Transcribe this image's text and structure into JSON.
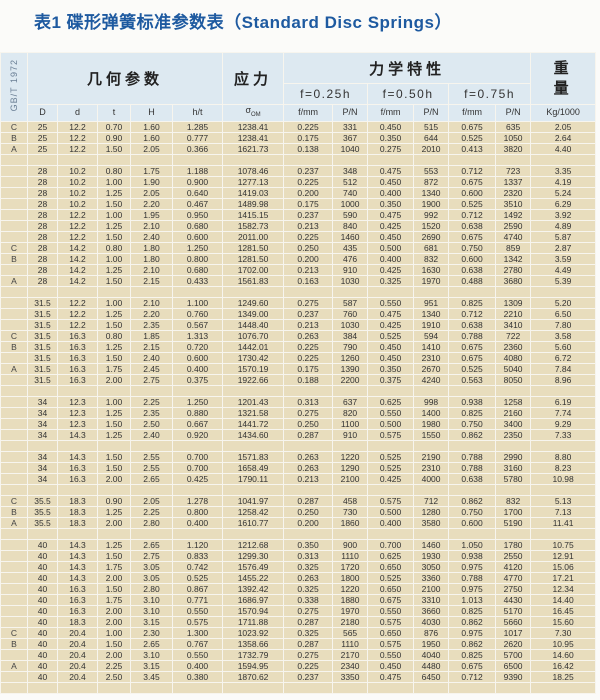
{
  "title": "表1 碟形弹簧标准参数表（Standard Disc Springs）",
  "header": {
    "standard": "GB/T 1972",
    "geometry": "几何参数",
    "stress": "应力",
    "mechanical": "力学特性",
    "weight_top": "重",
    "weight_bottom": "量",
    "f025": "f=0.25h",
    "f050": "f=0.50h",
    "f075": "f=0.75h",
    "columns": {
      "D": "D",
      "d": "d",
      "t": "t",
      "H": "H",
      "ht": "h/t",
      "sigma": "σ",
      "sigma_sub": "OM",
      "f1": "f/mm",
      "p1": "P/N",
      "f2": "f/mm",
      "p2": "P/N",
      "f3": "f/mm",
      "p3": "P/N",
      "kg": "Kg/1000"
    }
  },
  "colors": {
    "title": "#1e5aa0",
    "header_bg": "#dde9f1",
    "row_bg": "#e8ddbd"
  },
  "rows": [
    [
      "C",
      "25",
      "12.2",
      "0.70",
      "1.60",
      "1.285",
      "1238.41",
      "0.225",
      "331",
      "0.450",
      "515",
      "0.675",
      "635",
      "2.05"
    ],
    [
      "B",
      "25",
      "12.2",
      "0.90",
      "1.60",
      "0.777",
      "1238.41",
      "0.175",
      "367",
      "0.350",
      "644",
      "0.525",
      "1050",
      "2.64"
    ],
    [
      "A",
      "25",
      "12.2",
      "1.50",
      "2.05",
      "0.366",
      "1621.73",
      "0.138",
      "1040",
      "0.275",
      "2010",
      "0.413",
      "3820",
      "4.40"
    ],
    null,
    [
      "",
      "28",
      "10.2",
      "0.80",
      "1.75",
      "1.188",
      "1078.46",
      "0.237",
      "348",
      "0.475",
      "553",
      "0.712",
      "723",
      "3.35"
    ],
    [
      "",
      "28",
      "10.2",
      "1.00",
      "1.90",
      "0.900",
      "1277.13",
      "0.225",
      "512",
      "0.450",
      "872",
      "0.675",
      "1337",
      "4.19"
    ],
    [
      "",
      "28",
      "10.2",
      "1.25",
      "2.05",
      "0.640",
      "1419.03",
      "0.200",
      "740",
      "0.400",
      "1340",
      "0.600",
      "2320",
      "5.24"
    ],
    [
      "",
      "28",
      "10.2",
      "1.50",
      "2.20",
      "0.467",
      "1489.98",
      "0.175",
      "1000",
      "0.350",
      "1900",
      "0.525",
      "3510",
      "6.29"
    ],
    [
      "",
      "28",
      "12.2",
      "1.00",
      "1.95",
      "0.950",
      "1415.15",
      "0.237",
      "590",
      "0.475",
      "992",
      "0.712",
      "1492",
      "3.92"
    ],
    [
      "",
      "28",
      "12.2",
      "1.25",
      "2.10",
      "0.680",
      "1582.73",
      "0.213",
      "840",
      "0.425",
      "1520",
      "0.638",
      "2590",
      "4.89"
    ],
    [
      "",
      "28",
      "12.2",
      "1.50",
      "2.40",
      "0.600",
      "2011.00",
      "0.225",
      "1460",
      "0.450",
      "2690",
      "0.675",
      "4740",
      "5.87"
    ],
    [
      "C",
      "28",
      "14.2",
      "0.80",
      "1.80",
      "1.250",
      "1281.50",
      "0.250",
      "435",
      "0.500",
      "681",
      "0.750",
      "859",
      "2.87"
    ],
    [
      "B",
      "28",
      "14.2",
      "1.00",
      "1.80",
      "0.800",
      "1281.50",
      "0.200",
      "476",
      "0.400",
      "832",
      "0.600",
      "1342",
      "3.59"
    ],
    [
      "",
      "28",
      "14.2",
      "1.25",
      "2.10",
      "0.680",
      "1702.00",
      "0.213",
      "910",
      "0.425",
      "1630",
      "0.638",
      "2780",
      "4.49"
    ],
    [
      "A",
      "28",
      "14.2",
      "1.50",
      "2.15",
      "0.433",
      "1561.83",
      "0.163",
      "1030",
      "0.325",
      "1970",
      "0.488",
      "3680",
      "5.39"
    ],
    null,
    [
      "",
      "31.5",
      "12.2",
      "1.00",
      "2.10",
      "1.100",
      "1249.60",
      "0.275",
      "587",
      "0.550",
      "951",
      "0.825",
      "1309",
      "5.20"
    ],
    [
      "",
      "31.5",
      "12.2",
      "1.25",
      "2.20",
      "0.760",
      "1349.00",
      "0.237",
      "760",
      "0.475",
      "1340",
      "0.712",
      "2210",
      "6.50"
    ],
    [
      "",
      "31.5",
      "12.2",
      "1.50",
      "2.35",
      "0.567",
      "1448.40",
      "0.213",
      "1030",
      "0.425",
      "1910",
      "0.638",
      "3410",
      "7.80"
    ],
    [
      "C",
      "31.5",
      "16.3",
      "0.80",
      "1.85",
      "1.313",
      "1076.70",
      "0.263",
      "384",
      "0.525",
      "594",
      "0.788",
      "722",
      "3.58"
    ],
    [
      "B",
      "31.5",
      "16.3",
      "1.25",
      "2.15",
      "0.720",
      "1442.01",
      "0.225",
      "790",
      "0.450",
      "1410",
      "0.675",
      "2360",
      "5.60"
    ],
    [
      "",
      "31.5",
      "16.3",
      "1.50",
      "2.40",
      "0.600",
      "1730.42",
      "0.225",
      "1260",
      "0.450",
      "2310",
      "0.675",
      "4080",
      "6.72"
    ],
    [
      "A",
      "31.5",
      "16.3",
      "1.75",
      "2.45",
      "0.400",
      "1570.19",
      "0.175",
      "1390",
      "0.350",
      "2670",
      "0.525",
      "5040",
      "7.84"
    ],
    [
      "",
      "31.5",
      "16.3",
      "2.00",
      "2.75",
      "0.375",
      "1922.66",
      "0.188",
      "2200",
      "0.375",
      "4240",
      "0.563",
      "8050",
      "8.96"
    ],
    null,
    [
      "",
      "34",
      "12.3",
      "1.00",
      "2.25",
      "1.250",
      "1201.43",
      "0.313",
      "637",
      "0.625",
      "998",
      "0.938",
      "1258",
      "6.19"
    ],
    [
      "",
      "34",
      "12.3",
      "1.25",
      "2.35",
      "0.880",
      "1321.58",
      "0.275",
      "820",
      "0.550",
      "1400",
      "0.825",
      "2160",
      "7.74"
    ],
    [
      "",
      "34",
      "12.3",
      "1.50",
      "2.50",
      "0.667",
      "1441.72",
      "0.250",
      "1100",
      "0.500",
      "1980",
      "0.750",
      "3400",
      "9.29"
    ],
    [
      "",
      "34",
      "14.3",
      "1.25",
      "2.40",
      "0.920",
      "1434.60",
      "0.287",
      "910",
      "0.575",
      "1550",
      "0.862",
      "2350",
      "7.33"
    ],
    null,
    [
      "",
      "34",
      "14.3",
      "1.50",
      "2.55",
      "0.700",
      "1571.83",
      "0.263",
      "1220",
      "0.525",
      "2190",
      "0.788",
      "2990",
      "8.80"
    ],
    [
      "",
      "34",
      "16.3",
      "1.50",
      "2.55",
      "0.700",
      "1658.49",
      "0.263",
      "1290",
      "0.525",
      "2310",
      "0.788",
      "3160",
      "8.23"
    ],
    [
      "",
      "34",
      "16.3",
      "2.00",
      "2.65",
      "0.425",
      "1790.11",
      "0.213",
      "2100",
      "0.425",
      "4000",
      "0.638",
      "5780",
      "10.98"
    ],
    null,
    [
      "C",
      "35.5",
      "18.3",
      "0.90",
      "2.05",
      "1.278",
      "1041.97",
      "0.287",
      "458",
      "0.575",
      "712",
      "0.862",
      "832",
      "5.13"
    ],
    [
      "B",
      "35.5",
      "18.3",
      "1.25",
      "2.25",
      "0.800",
      "1258.42",
      "0.250",
      "730",
      "0.500",
      "1280",
      "0.750",
      "1700",
      "7.13"
    ],
    [
      "A",
      "35.5",
      "18.3",
      "2.00",
      "2.80",
      "0.400",
      "1610.77",
      "0.200",
      "1860",
      "0.400",
      "3580",
      "0.600",
      "5190",
      "11.41"
    ],
    null,
    [
      "",
      "40",
      "14.3",
      "1.25",
      "2.65",
      "1.120",
      "1212.68",
      "0.350",
      "900",
      "0.700",
      "1460",
      "1.050",
      "1780",
      "10.75"
    ],
    [
      "",
      "40",
      "14.3",
      "1.50",
      "2.75",
      "0.833",
      "1299.30",
      "0.313",
      "1110",
      "0.625",
      "1930",
      "0.938",
      "2550",
      "12.91"
    ],
    [
      "",
      "40",
      "14.3",
      "1.75",
      "3.05",
      "0.742",
      "1576.49",
      "0.325",
      "1720",
      "0.650",
      "3050",
      "0.975",
      "4120",
      "15.06"
    ],
    [
      "",
      "40",
      "14.3",
      "2.00",
      "3.05",
      "0.525",
      "1455.22",
      "0.263",
      "1800",
      "0.525",
      "3360",
      "0.788",
      "4770",
      "17.21"
    ],
    [
      "",
      "40",
      "16.3",
      "1.50",
      "2.80",
      "0.867",
      "1392.42",
      "0.325",
      "1220",
      "0.650",
      "2100",
      "0.975",
      "2750",
      "12.34"
    ],
    [
      "",
      "40",
      "16.3",
      "1.75",
      "3.10",
      "0.771",
      "1686.97",
      "0.338",
      "1880",
      "0.675",
      "3310",
      "1.013",
      "4430",
      "14.40"
    ],
    [
      "",
      "40",
      "16.3",
      "2.00",
      "3.10",
      "0.550",
      "1570.94",
      "0.275",
      "1970",
      "0.550",
      "3660",
      "0.825",
      "5170",
      "16.45"
    ],
    [
      "",
      "40",
      "18.3",
      "2.00",
      "3.15",
      "0.575",
      "1711.88",
      "0.287",
      "2180",
      "0.575",
      "4030",
      "0.862",
      "5660",
      "15.60"
    ],
    [
      "C",
      "40",
      "20.4",
      "1.00",
      "2.30",
      "1.300",
      "1023.92",
      "0.325",
      "565",
      "0.650",
      "876",
      "0.975",
      "1017",
      "7.30"
    ],
    [
      "B",
      "40",
      "20.4",
      "1.50",
      "2.65",
      "0.767",
      "1358.66",
      "0.287",
      "1110",
      "0.575",
      "1950",
      "0.862",
      "2620",
      "10.95"
    ],
    [
      "",
      "40",
      "20.4",
      "2.00",
      "3.10",
      "0.550",
      "1732.79",
      "0.275",
      "2170",
      "0.550",
      "4040",
      "0.825",
      "5700",
      "14.60"
    ],
    [
      "A",
      "40",
      "20.4",
      "2.25",
      "3.15",
      "0.400",
      "1594.95",
      "0.225",
      "2340",
      "0.450",
      "4480",
      "0.675",
      "6500",
      "16.42"
    ],
    [
      "",
      "40",
      "20.4",
      "2.50",
      "3.45",
      "0.380",
      "1870.62",
      "0.237",
      "3350",
      "0.475",
      "6450",
      "0.712",
      "9390",
      "18.25"
    ],
    null
  ]
}
